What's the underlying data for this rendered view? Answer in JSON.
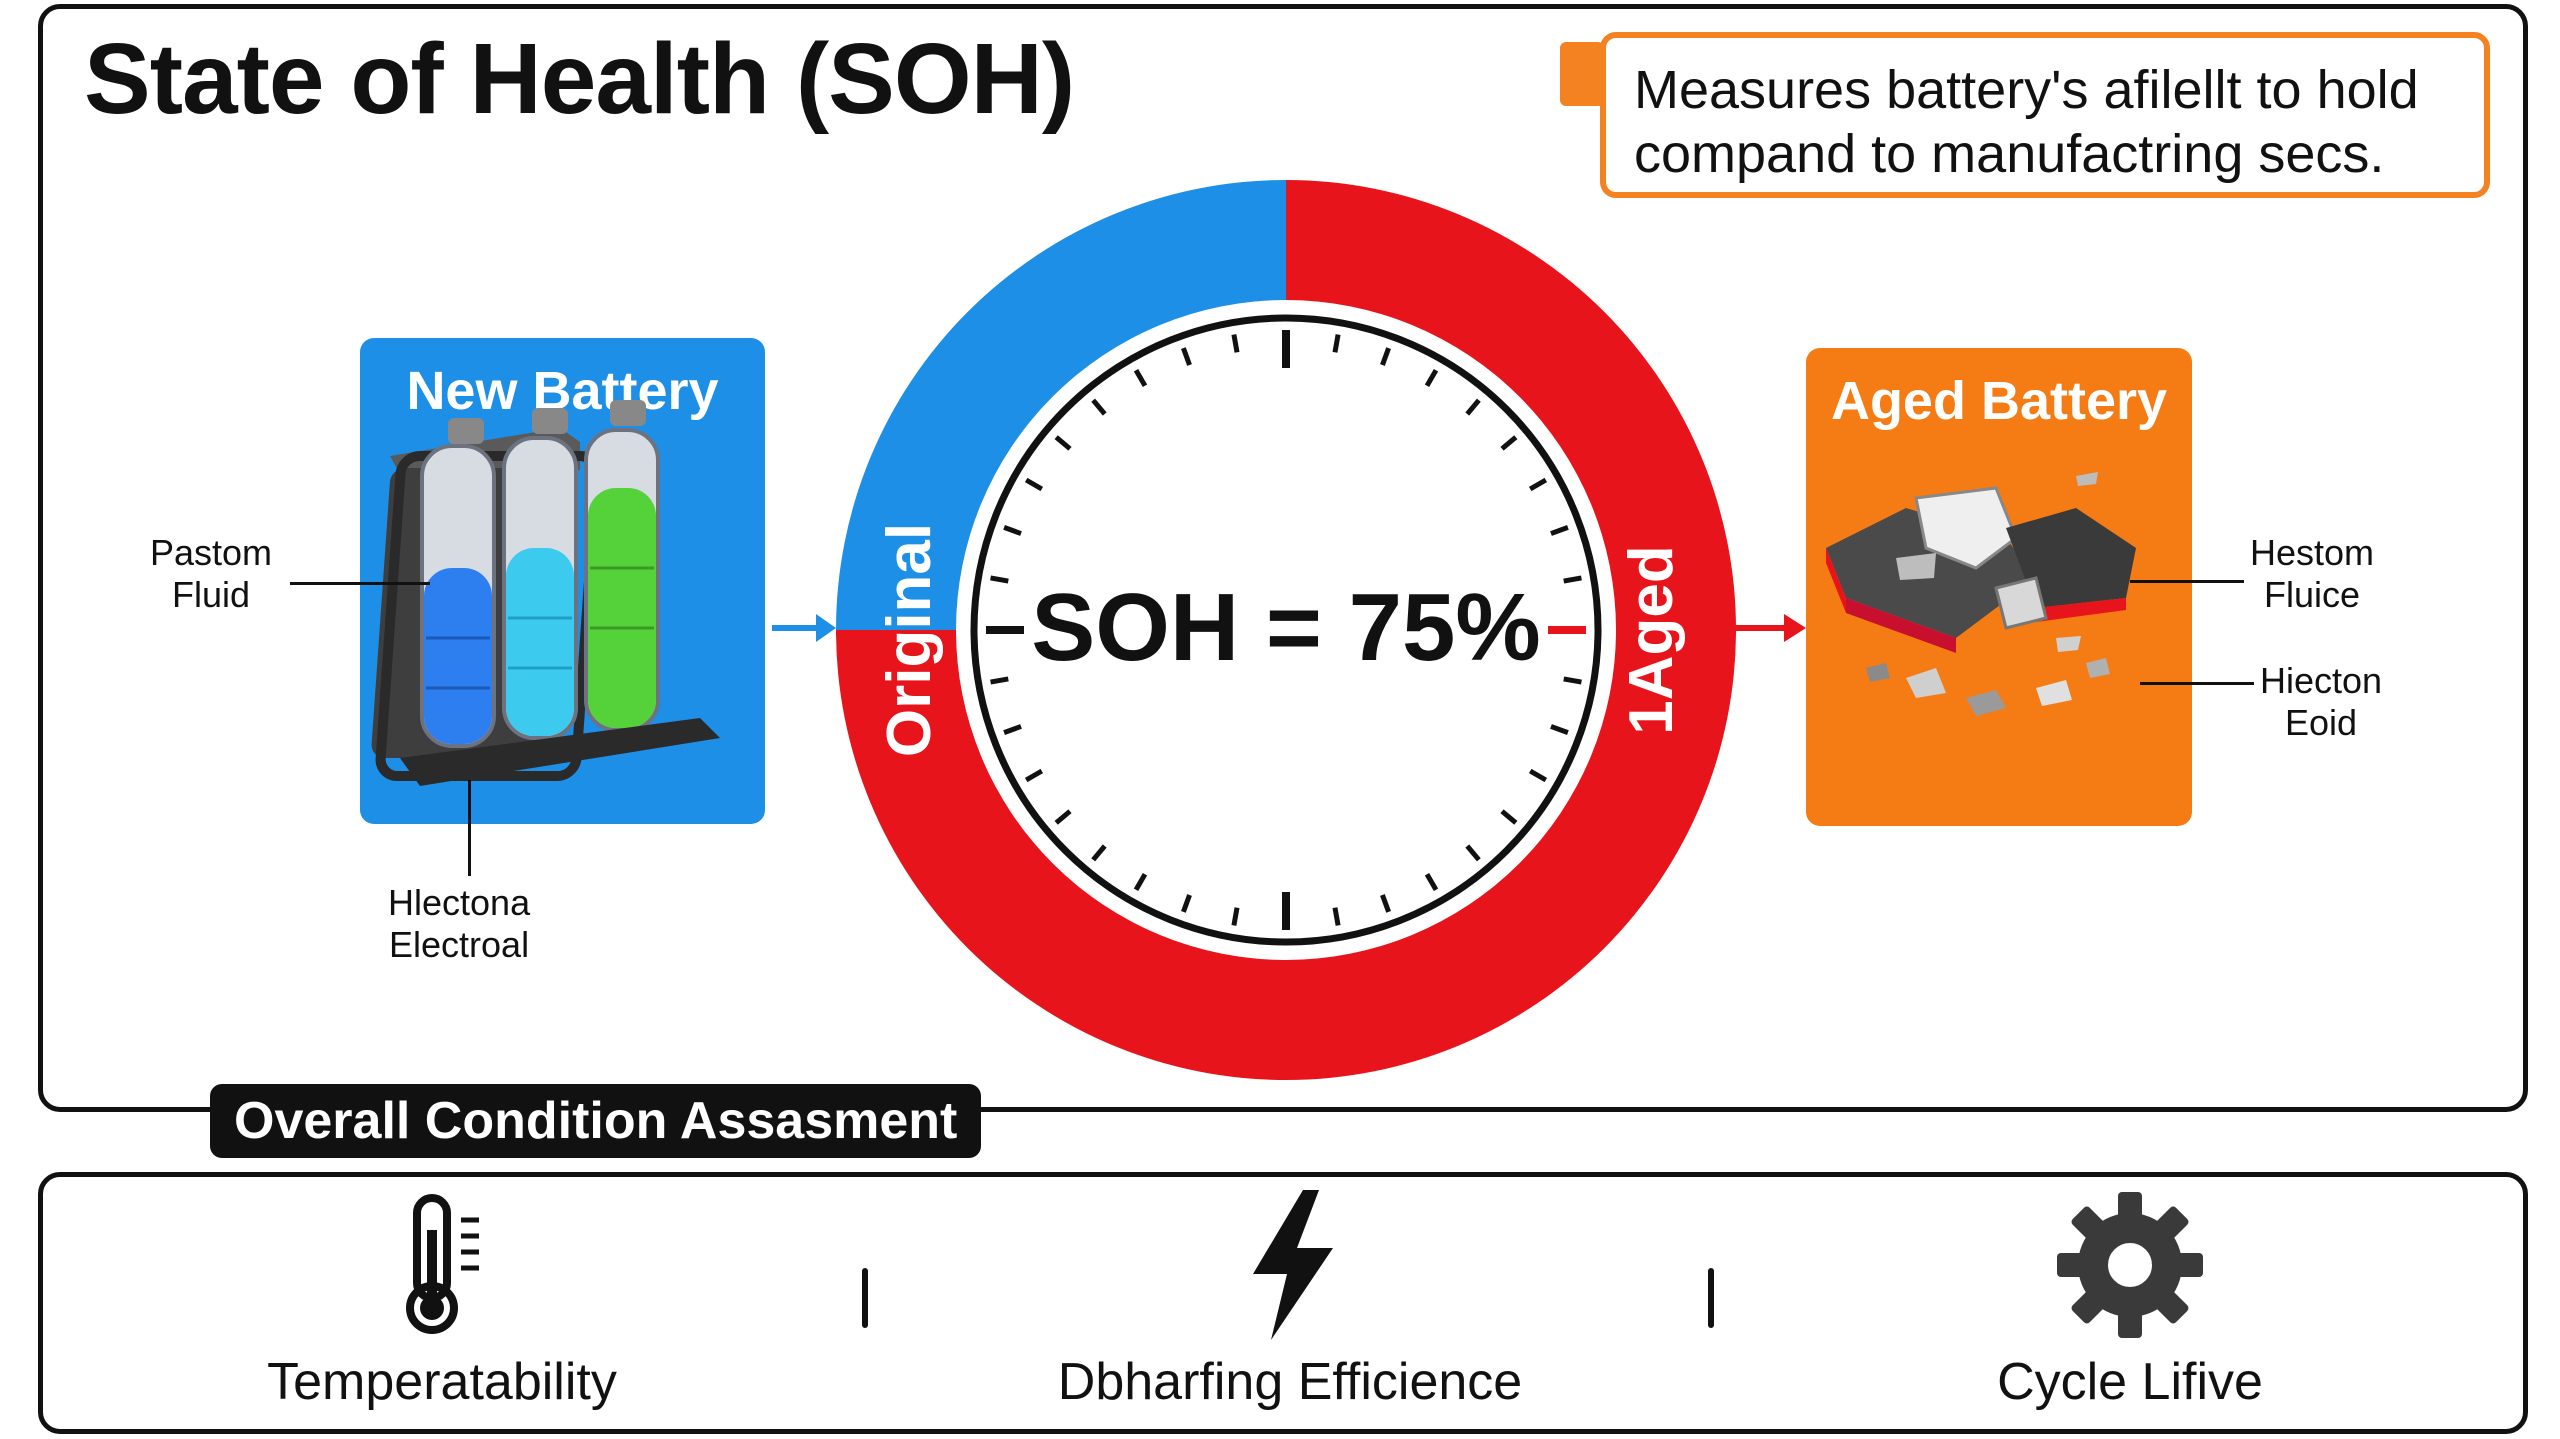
{
  "title": "State of Health (SOH)",
  "callout": {
    "line1": "Measures battery's afilellt to hold",
    "line2": "compand to manufactring secs."
  },
  "new_battery": {
    "title": "New Battery",
    "anno_left_1": "Pastom",
    "anno_left_2": "Fluid",
    "anno_bottom_1": "Hlectona",
    "anno_bottom_2": "Electroal"
  },
  "aged_battery": {
    "title": "Aged Battery",
    "anno_right_top_1": "Hestom",
    "anno_right_top_2": "Fluice",
    "anno_right_bot_1": "Hiecton",
    "anno_right_bot_2": "Eoid"
  },
  "gauge": {
    "center_text": "SOH = 75%",
    "soh_percent": 75,
    "original_label": "Original",
    "aged_label": "1Aged",
    "original_color": "#1e8fe6",
    "aged_color": "#e8141c"
  },
  "assessment": {
    "label": "Overall Condition Assasment",
    "items": [
      {
        "label": "Temperatability",
        "icon": "thermometer-icon"
      },
      {
        "label": "Dbharfing Efficience",
        "icon": "lightning-bolt-icon"
      },
      {
        "label": "Cycle Lifive",
        "icon": "gear-icon"
      }
    ]
  },
  "colors": {
    "accent_orange": "#f58220",
    "blue": "#1e8fe6",
    "red": "#e8141c"
  }
}
